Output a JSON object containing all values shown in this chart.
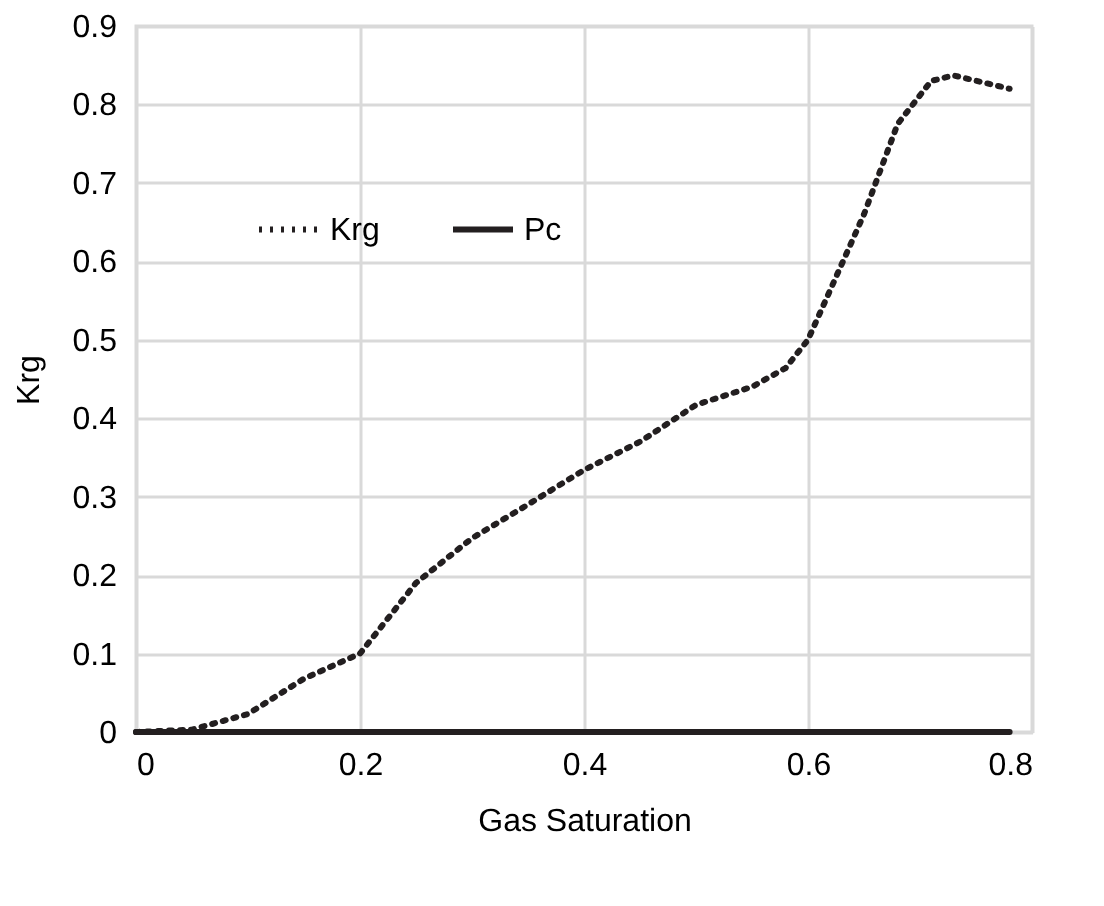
{
  "chart_data": {
    "type": "line",
    "xlabel": "Gas Saturation",
    "ylabel": "Krg",
    "xlim": [
      0,
      0.8
    ],
    "xticks": [
      0,
      0.2,
      0.4,
      0.6,
      0.8
    ],
    "ylim": [
      0,
      0.9
    ],
    "yticks": [
      0,
      0.1,
      0.2,
      0.3,
      0.4,
      0.5,
      0.6,
      0.7,
      0.8,
      0.9
    ],
    "grid": true,
    "legend": "top left",
    "marker": "none",
    "series": [
      {
        "name": "Krg",
        "color": "#231f20",
        "line_style": "dotted",
        "x": [
          0,
          0.05,
          0.1,
          0.15,
          0.2,
          0.25,
          0.3,
          0.35,
          0.4,
          0.45,
          0.5,
          0.55,
          0.58,
          0.6,
          0.65,
          0.68,
          0.71,
          0.73,
          0.78
        ],
        "values": [
          0,
          0.003,
          0.023,
          0.068,
          0.1,
          0.19,
          0.247,
          0.29,
          0.334,
          0.37,
          0.417,
          0.44,
          0.464,
          0.5,
          0.66,
          0.775,
          0.83,
          0.837,
          0.82
        ]
      },
      {
        "name": "Pc",
        "color": "#231f20",
        "line_style": "solid",
        "x": [
          0,
          0.78
        ],
        "values": [
          0,
          0
        ]
      }
    ]
  }
}
